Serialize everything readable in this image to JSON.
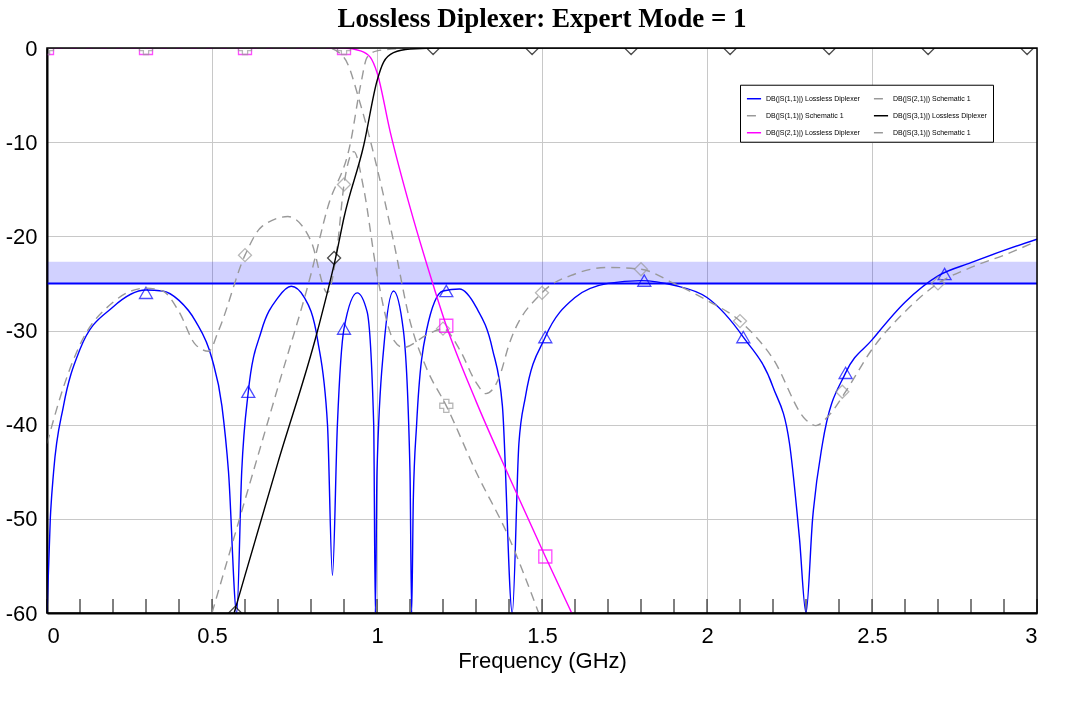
{
  "chart_data": {
    "type": "line",
    "title": "Lossless Diplexer: Expert Mode = 1",
    "xlabel": "Frequency (GHz)",
    "xlim": [
      0,
      3
    ],
    "ylim": [
      -60,
      0
    ],
    "xticks": [
      0,
      {
        "value": 0.1,
        "label": null
      },
      {
        "value": 0.2,
        "label": null
      },
      {
        "value": 0.3,
        "label": null
      },
      {
        "value": 0.4,
        "label": null
      },
      0.5,
      {
        "value": 0.6,
        "label": null
      },
      {
        "value": 0.7,
        "label": null
      },
      {
        "value": 0.8,
        "label": null
      },
      {
        "value": 0.9,
        "label": null
      },
      1,
      {
        "value": 1.1,
        "label": null
      },
      {
        "value": 1.2,
        "label": null
      },
      {
        "value": 1.3,
        "label": null
      },
      {
        "value": 1.4,
        "label": null
      },
      1.5,
      {
        "value": 1.6,
        "label": null
      },
      {
        "value": 1.7,
        "label": null
      },
      {
        "value": 1.8,
        "label": null
      },
      {
        "value": 1.9,
        "label": null
      },
      2,
      {
        "value": 2.1,
        "label": null
      },
      {
        "value": 2.2,
        "label": null
      },
      {
        "value": 2.3,
        "label": null
      },
      {
        "value": 2.4,
        "label": null
      },
      2.5,
      {
        "value": 2.6,
        "label": null
      },
      {
        "value": 2.7,
        "label": null
      },
      {
        "value": 2.8,
        "label": null
      },
      {
        "value": 2.9,
        "label": null
      },
      3
    ],
    "yticks": [
      0,
      -10,
      -20,
      -30,
      -40,
      -50,
      -60
    ],
    "grid": true,
    "legend": "top right",
    "bands": [
      {
        "axis": "y",
        "from": -25,
        "to": -22.7,
        "color": "#0000ff"
      }
    ],
    "ref_lines": [
      {
        "axis": "y",
        "value": -25,
        "color": "#0000ff",
        "line_style": "solid"
      }
    ],
    "series": [
      {
        "name": "DB(|S(1,1)|) Lossless Diplexer",
        "color": "#0000ff",
        "line_style": "solid",
        "x": [
          0,
          0.01,
          0.02,
          0.05,
          0.1,
          0.2,
          0.3,
          0.35,
          0.4,
          0.45,
          0.5,
          0.53,
          0.55,
          0.575,
          0.59,
          0.61,
          0.65,
          0.7,
          0.74,
          0.78,
          0.82,
          0.85,
          0.865,
          0.88,
          0.9,
          0.94,
          0.97,
          0.99,
          0.995,
          1.0,
          1.02,
          1.05,
          1.08,
          1.1,
          1.105,
          1.11,
          1.12,
          1.15,
          1.2,
          1.25,
          1.3,
          1.35,
          1.38,
          1.41,
          1.43,
          1.45,
          1.51,
          1.6,
          1.7,
          1.8,
          1.9,
          2.0,
          2.11,
          2.2,
          2.25,
          2.28,
          2.3,
          2.32,
          2.35,
          2.42,
          2.5,
          2.6,
          2.7,
          2.8,
          2.9,
          3.0
        ],
        "values": [
          -60,
          -50,
          -45,
          -38,
          -32,
          -27.5,
          -25.7,
          -25.8,
          -26.8,
          -29,
          -33,
          -38,
          -45,
          -60,
          -45,
          -36.5,
          -30,
          -26.5,
          -25.3,
          -26.5,
          -31,
          -40,
          -56,
          -40,
          -29.8,
          -26,
          -28,
          -40,
          -60,
          -45,
          -32,
          -25.8,
          -30,
          -45,
          -60,
          -48,
          -40,
          -30,
          -25.8,
          -25.6,
          -27.5,
          -32,
          -38,
          -60,
          -42,
          -37,
          -30.7,
          -26.5,
          -25,
          -24.7,
          -25.2,
          -26.5,
          -30.7,
          -36,
          -42,
          -52,
          -60,
          -50,
          -42,
          -34.5,
          -31,
          -27,
          -24.2,
          -22.8,
          -21.5,
          -20.3
        ]
      },
      {
        "type": "scatter",
        "color": "#0000ff",
        "marker": "triangle",
        "x": [
          0.3,
          0.61,
          0.9,
          1.21,
          1.51,
          1.81,
          2.11,
          2.42,
          2.72
        ],
        "values": [
          -26,
          -36.5,
          -29.8,
          -25.8,
          -30.7,
          -24.7,
          -30.7,
          -34.5,
          -24
        ]
      },
      {
        "name": "DB(|S(1,1)|) Schematic 1",
        "color": "#999999",
        "line_style": "dashed",
        "x": [
          0,
          0.05,
          0.1,
          0.2,
          0.3,
          0.35,
          0.4,
          0.45,
          0.49,
          0.52,
          0.6,
          0.65,
          0.73,
          0.8,
          0.85,
          0.88,
          0.9,
          0.93,
          0.96,
          1.0,
          1.05,
          1.08,
          1.15,
          1.2,
          1.25,
          1.3,
          1.33,
          1.37,
          1.4,
          1.5,
          1.6,
          1.7,
          1.8,
          1.9,
          2.0,
          2.1,
          2.2,
          2.3,
          2.33,
          2.37,
          2.42,
          2.5,
          2.6,
          2.7,
          2.8,
          2.9,
          3.0
        ],
        "values": [
          -42,
          -36,
          -31.5,
          -27,
          -25.5,
          -25.8,
          -28,
          -31.5,
          -32.2,
          -30,
          -22,
          -19,
          -17.9,
          -20.5,
          -26,
          -21,
          -14.5,
          -11,
          -15,
          -24,
          -31,
          -31.8,
          -30.5,
          -29.8,
          -32,
          -35.5,
          -36.7,
          -35,
          -31.5,
          -26,
          -24,
          -23.3,
          -23.5,
          -25,
          -26.8,
          -29,
          -33,
          -39.5,
          -40.1,
          -39,
          -36.5,
          -32,
          -28,
          -25,
          -23.3,
          -22,
          -20.5
        ]
      },
      {
        "type": "scatter",
        "color": "#999999",
        "marker": "diamond",
        "x": [
          0.6,
          0.9,
          1.2,
          1.5,
          1.8,
          2.1,
          2.41,
          2.7
        ],
        "values": [
          -22,
          -14.5,
          -29.8,
          -26,
          -23.5,
          -29,
          -36.5,
          -25
        ]
      },
      {
        "name": "DB(|S(2,1)|) Lossless Diplexer",
        "color": "#ff00ff",
        "line_style": "solid",
        "x": [
          0,
          0.9,
          0.95,
          0.98,
          1.0,
          1.04,
          1.1,
          1.16,
          1.21,
          1.3,
          1.4,
          1.51,
          1.59
        ],
        "values": [
          0,
          0,
          -0.3,
          -1,
          -2.6,
          -8.9,
          -16.9,
          -24,
          -29.5,
          -37.5,
          -45.5,
          -54,
          -60
        ]
      },
      {
        "type": "scatter",
        "color": "#ff00ff",
        "marker": "square",
        "x": [
          0,
          0.3,
          0.6,
          0.9,
          1.21,
          1.51
        ],
        "values": [
          0,
          0,
          0,
          0,
          -29.5,
          -54
        ]
      },
      {
        "name": "DB(|S(2,1)|) Schematic 1",
        "color": "#999999",
        "line_style": "dashed",
        "x": [
          0,
          0.85,
          0.9,
          0.95,
          1.0,
          1.05,
          1.1,
          1.15,
          1.21,
          1.3,
          1.4,
          1.49
        ],
        "values": [
          0,
          0,
          -1,
          -6,
          -12.7,
          -20.5,
          -29,
          -34,
          -38,
          -45,
          -52,
          -60
        ]
      },
      {
        "type": "scatter",
        "color": "#999999",
        "marker": "cross",
        "x": [
          0,
          0.3,
          0.6,
          0.9,
          1.21
        ],
        "values": [
          0,
          0,
          0,
          0,
          -38
        ]
      },
      {
        "name": "DB(|S(3,1)|) Lossless Diplexer",
        "color": "#000000",
        "line_style": "solid",
        "x": [
          0.567,
          0.6,
          0.7,
          0.82,
          0.877,
          0.9,
          0.96,
          1.0,
          1.02,
          1.05,
          1.1,
          1.2,
          3.0
        ],
        "values": [
          -60,
          -56,
          -44,
          -30,
          -21.9,
          -18,
          -10.3,
          -3.5,
          -1.5,
          -0.5,
          -0.1,
          0,
          0
        ]
      },
      {
        "type": "scatter",
        "color": "#000000",
        "marker": "diamond",
        "x": [
          0.57,
          0.87,
          1.17,
          1.47,
          1.77,
          2.07,
          2.37,
          2.67,
          2.97
        ],
        "values": [
          -60,
          -22.3,
          0,
          0,
          0,
          0,
          0,
          0,
          0
        ]
      },
      {
        "name": "DB(|S(3,1)|) Schematic 1",
        "color": "#999999",
        "line_style": "dashed",
        "x": [
          0.5,
          0.6,
          0.7,
          0.8,
          0.85,
          0.92,
          0.95,
          0.97,
          1.0,
          1.1
        ],
        "values": [
          -60,
          -48,
          -36,
          -24,
          -17,
          -10,
          -4,
          -1,
          -0.3,
          0
        ]
      }
    ]
  }
}
